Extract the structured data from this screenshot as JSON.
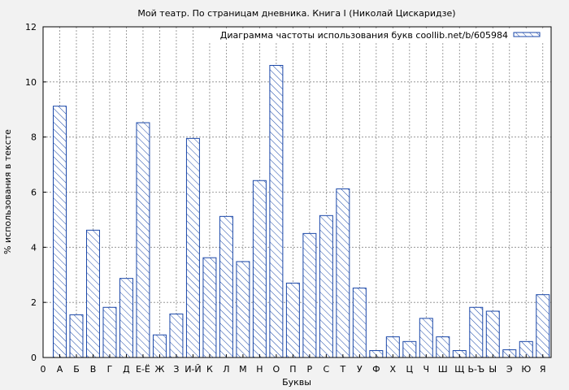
{
  "chart_data": {
    "type": "bar",
    "title": "Мой театр. По страницам дневника. Книга I (Николай Цискаридзе)",
    "xlabel": "Буквы",
    "ylabel": "% использования в тексте",
    "ylim": [
      0,
      12
    ],
    "yticks": [
      "0",
      "2",
      "4",
      "6",
      "8",
      "10",
      "12"
    ],
    "grid": true,
    "legend_position": "top-right",
    "series": [
      {
        "name": "Диаграмма частоты использования букв coollib.net/b/605984",
        "color": "#1a47a8",
        "values": [
          9.12,
          1.55,
          4.62,
          1.82,
          2.87,
          8.52,
          0.82,
          1.58,
          7.95,
          3.62,
          5.12,
          3.48,
          6.42,
          10.6,
          2.7,
          4.5,
          5.15,
          6.12,
          2.52,
          0.25,
          0.75,
          0.58,
          1.42,
          0.75,
          0.25,
          1.82,
          1.68,
          0.28,
          0.58,
          2.28
        ]
      }
    ],
    "categories": [
      "А",
      "Б",
      "В",
      "Г",
      "Д",
      "Е-Ё",
      "Ж",
      "З",
      "И-Й",
      "К",
      "Л",
      "М",
      "Н",
      "О",
      "П",
      "Р",
      "С",
      "Т",
      "У",
      "Ф",
      "Х",
      "Ц",
      "Ч",
      "Ш",
      "Щ",
      "Ь-Ъ",
      "Ы",
      "Э",
      "Ю",
      "Я"
    ],
    "x_origin_label": "0"
  }
}
